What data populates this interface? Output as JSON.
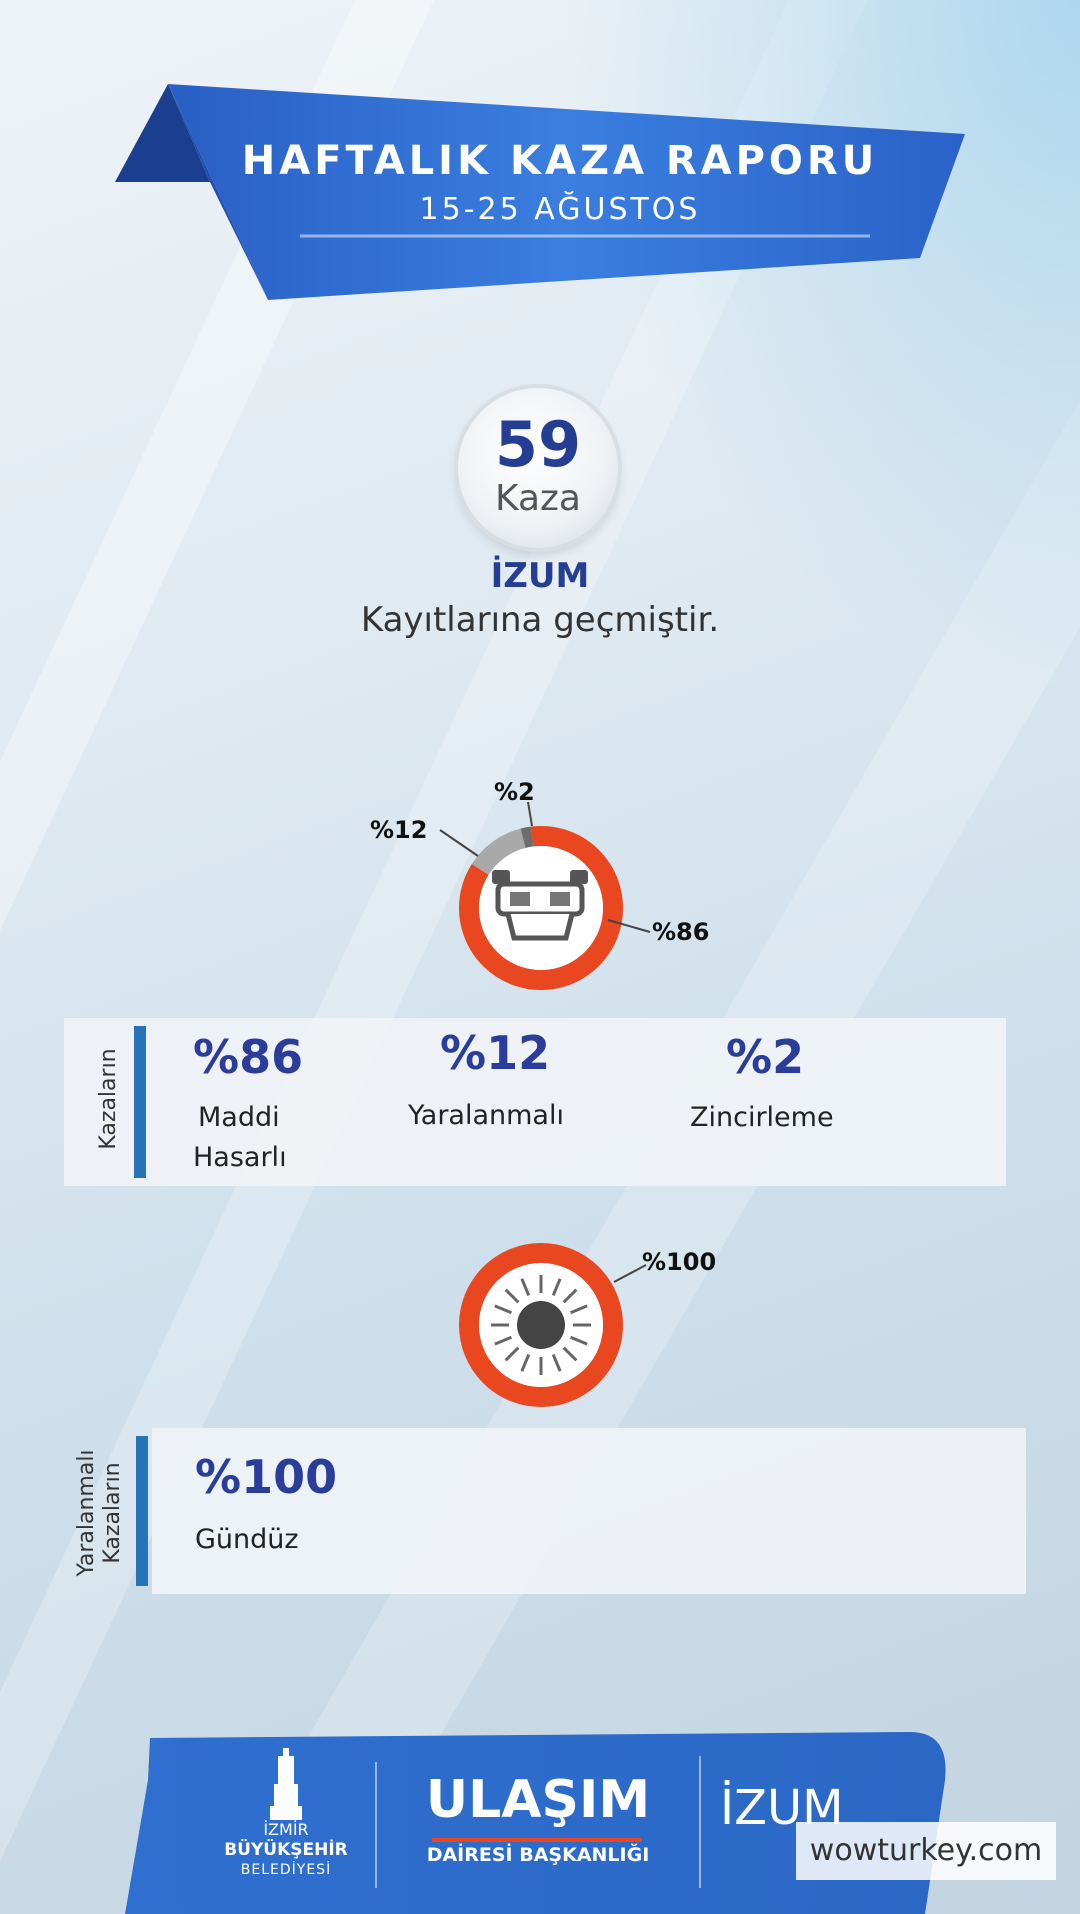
{
  "header": {
    "title": "HAFTALIK KAZA RAPORU",
    "date_range": "15-25  AĞUSTOS"
  },
  "summary": {
    "count": "59",
    "count_label": "Kaza",
    "source_title": "İZUM",
    "source_text": "Kayıtlarına geçmiştir."
  },
  "chart_data": [
    {
      "type": "pie",
      "categories": [
        "Maddi Hasarlı",
        "Yaralanmalı",
        "Zincirleme"
      ],
      "values": [
        86,
        12,
        2
      ],
      "labels": [
        "%86",
        "%12",
        "%2"
      ],
      "colors": [
        "#e8471f",
        "#a9a9a9",
        "#6d6d6d"
      ],
      "center_icon": "overturned-car-icon"
    },
    {
      "type": "pie",
      "categories": [
        "Gündüz"
      ],
      "values": [
        100
      ],
      "labels": [
        "%100"
      ],
      "colors": [
        "#e8471f"
      ],
      "center_icon": "sun-icon"
    }
  ],
  "accident_types": {
    "side_label": "Kazaların",
    "items": [
      {
        "value": "%86",
        "label_line1": "Maddi",
        "label_line2": "Hasarlı"
      },
      {
        "value": "%12",
        "label_line1": "Yaralanmalı",
        "label_line2": ""
      },
      {
        "value": "%2",
        "label_line1": "Zincirleme",
        "label_line2": ""
      }
    ]
  },
  "injury_time": {
    "side_label_line1": "Yaralanmalı",
    "side_label_line2": "Kazaların",
    "items": [
      {
        "value": "%100",
        "label": "Gündüz"
      }
    ]
  },
  "footer": {
    "org1_line1": "İZMİR",
    "org1_line2": "BÜYÜKŞEHİR",
    "org1_line3": "BELEDİYESİ",
    "org2_title": "ULAŞIM",
    "org2_sub": "DAİRESİ BAŞKANLIĞI",
    "org3_title": "İZUM",
    "watermark": "wowturkey.com"
  },
  "colors": {
    "primary_blue": "#2f6fcf",
    "dark_blue": "#233e93",
    "accent_orange": "#e8471f"
  }
}
